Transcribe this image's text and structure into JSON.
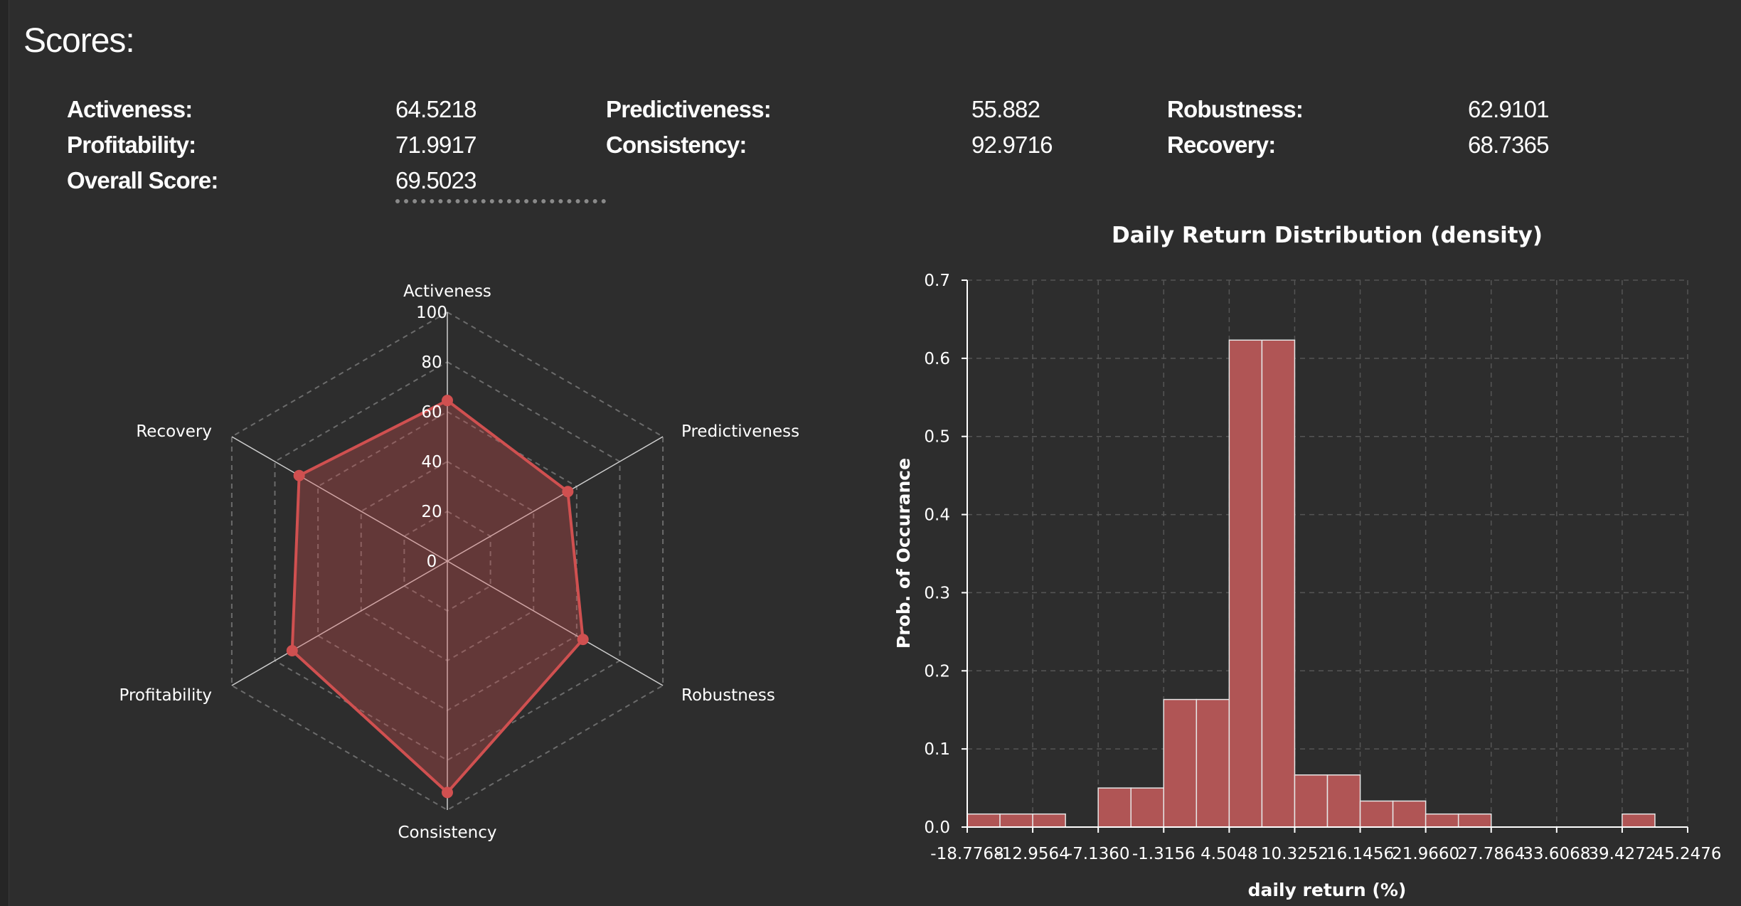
{
  "scores_title": "Scores:",
  "scores": [
    {
      "label": "Activeness:",
      "value": "64.5218"
    },
    {
      "label": "Predictiveness:",
      "value": "55.882"
    },
    {
      "label": "Robustness:",
      "value": "62.9101"
    },
    {
      "label": "Profitability:",
      "value": "71.9917"
    },
    {
      "label": "Consistency:",
      "value": "92.9716"
    },
    {
      "label": "Recovery:",
      "value": "68.7365"
    },
    {
      "label": "Overall Score:",
      "value": "69.5023"
    }
  ],
  "colors": {
    "background": "#2d2d2d",
    "series": "#d05050",
    "bar_fill": "#b05555",
    "grid": "#6b6b6b",
    "text": "#ffffff"
  },
  "chart_data": [
    {
      "type": "radar",
      "axes": [
        "Activeness",
        "Predictiveness",
        "Robustness",
        "Consistency",
        "Profitability",
        "Recovery"
      ],
      "values": [
        64.5218,
        55.882,
        62.9101,
        92.9716,
        71.9917,
        68.7365
      ],
      "rlim": [
        0,
        100
      ],
      "rticks": [
        "0",
        "20",
        "40",
        "60",
        "80",
        "100"
      ],
      "grid": true
    },
    {
      "type": "bar",
      "title": "Daily Return Distribution (density)",
      "xlabel": "daily return (%)",
      "ylabel": "Prob. of Occurance",
      "bin_edges": [
        -18.7768,
        -15.8666,
        -12.9564,
        -10.0462,
        -7.136,
        -4.2258,
        -1.3156,
        1.5946,
        4.5048,
        7.415,
        10.3252,
        13.2354,
        16.1456,
        19.0558,
        21.966,
        24.8762,
        27.7864,
        30.6966,
        33.6068,
        36.517,
        39.4272,
        42.3374,
        45.2476
      ],
      "values": [
        0.0167,
        0.0167,
        0.0167,
        0,
        0.05,
        0.05,
        0.1633,
        0.1633,
        0.6233,
        0.6233,
        0.0667,
        0.0667,
        0.0333,
        0.0333,
        0.0167,
        0.0167,
        0,
        0,
        0,
        0,
        0.0167,
        0
      ],
      "xticks": [
        "-18.7768",
        "-12.9564",
        "-7.1360",
        "-1.3156",
        "4.5048",
        "10.3252",
        "16.1456",
        "21.9660",
        "27.7864",
        "33.6068",
        "39.4272",
        "45.2476"
      ],
      "yticks": [
        "0.0",
        "0.1",
        "0.2",
        "0.3",
        "0.4",
        "0.5",
        "0.6",
        "0.7"
      ],
      "ylim": [
        0,
        0.7
      ],
      "grid": true
    }
  ]
}
